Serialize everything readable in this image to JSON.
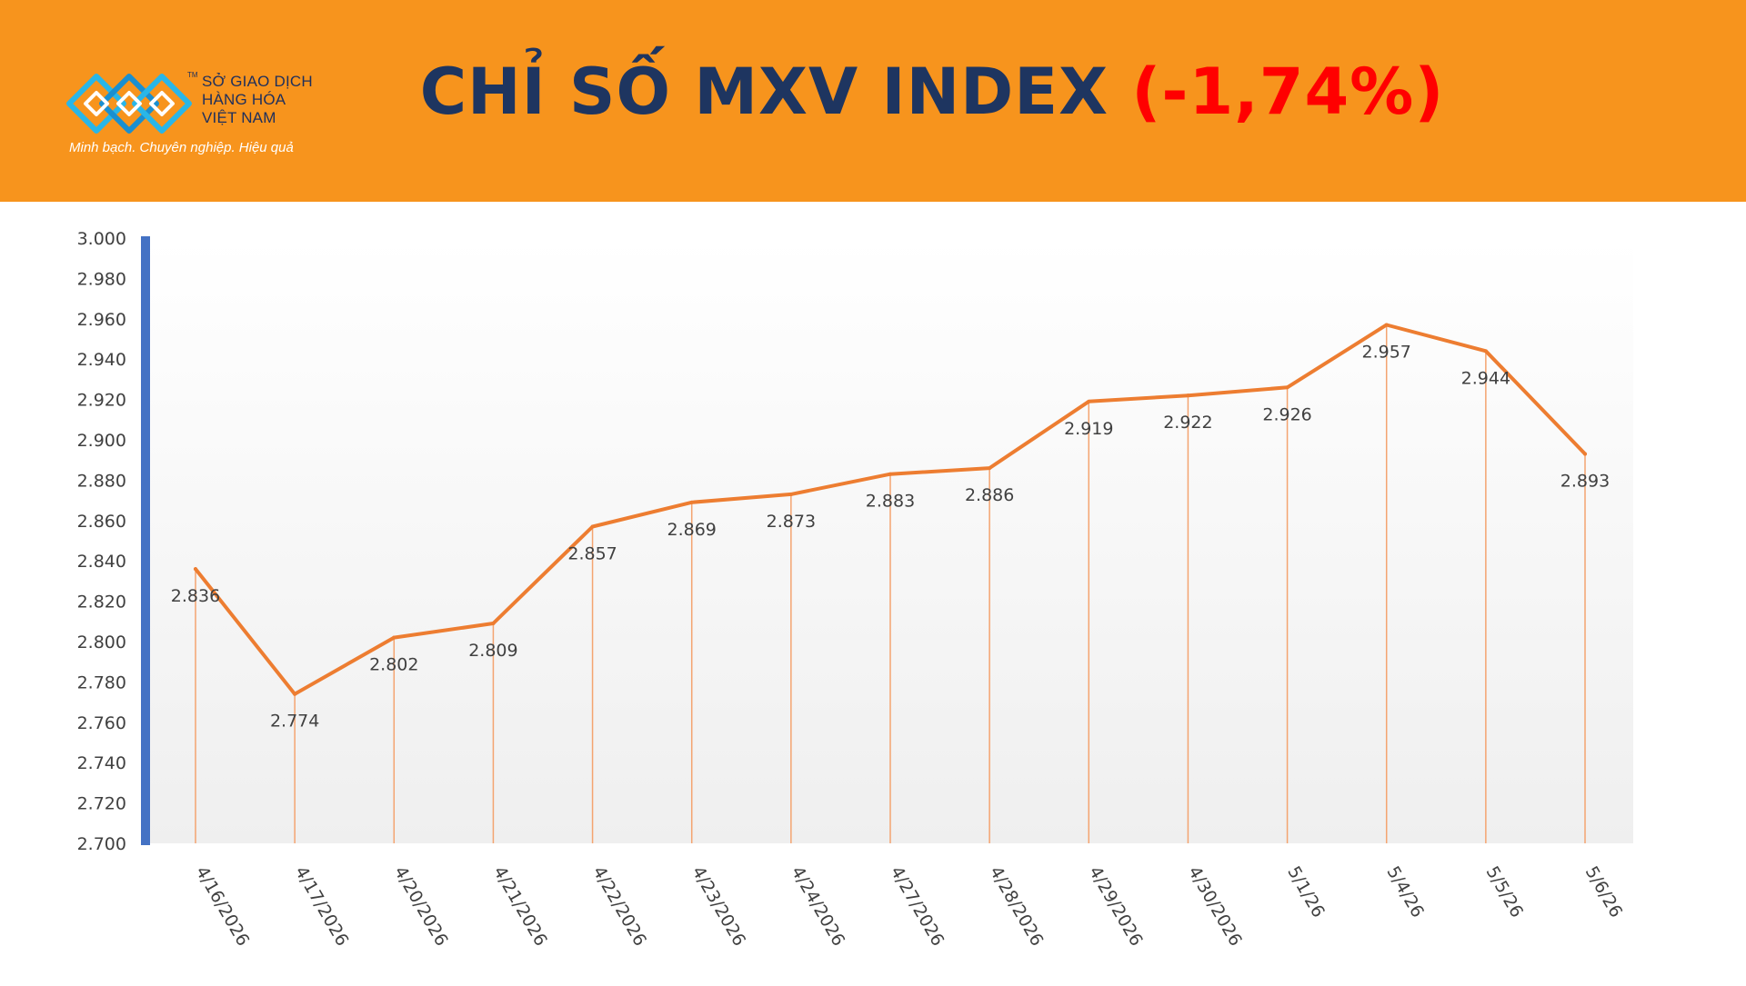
{
  "header": {
    "title_main": "CHỈ SỐ MXV INDEX",
    "title_change": "(-1,74%)",
    "background_color": "#f7941d",
    "title_color": "#1e3560",
    "change_color": "#ff0000"
  },
  "logo": {
    "line1": "SỞ GIAO DỊCH",
    "line2": "HÀNG HÓA",
    "line3": "VIỆT NAM",
    "tm": "TM",
    "tagline": "Minh bạch. Chuyên nghiệp. Hiệu quả",
    "icon": "mxv-logo-icon"
  },
  "chart_data": {
    "type": "line",
    "title": "",
    "xlabel": "",
    "ylabel": "",
    "categories": [
      "4/16/2026",
      "4/17/2026",
      "4/20/2026",
      "4/21/2026",
      "4/22/2026",
      "4/23/2026",
      "4/24/2026",
      "4/27/2026",
      "4/28/2026",
      "4/29/2026",
      "4/30/2026",
      "5/1/26",
      "5/4/26",
      "5/5/26",
      "5/6/26"
    ],
    "values": [
      2836,
      2774,
      2802,
      2809,
      2857,
      2869,
      2873,
      2883,
      2886,
      2919,
      2922,
      2926,
      2957,
      2944,
      2893
    ],
    "data_labels": [
      "2.836",
      "2.774",
      "2.802",
      "2.809",
      "2.857",
      "2.869",
      "2.873",
      "2.883",
      "2.886",
      "2.919",
      "2.922",
      "2.926",
      "2.957",
      "2.944",
      "2.893"
    ],
    "ylim": [
      2700,
      3000
    ],
    "yticks": [
      "2.700",
      "2.720",
      "2.740",
      "2.760",
      "2.780",
      "2.800",
      "2.820",
      "2.840",
      "2.860",
      "2.880",
      "2.900",
      "2.920",
      "2.940",
      "2.960",
      "2.980",
      "3.000"
    ],
    "line_color": "#ed7d31",
    "drop_line_color": "#f4a470",
    "axis_color": "#4472c4",
    "label_color": "#404040",
    "grid": false,
    "legend": "none"
  }
}
